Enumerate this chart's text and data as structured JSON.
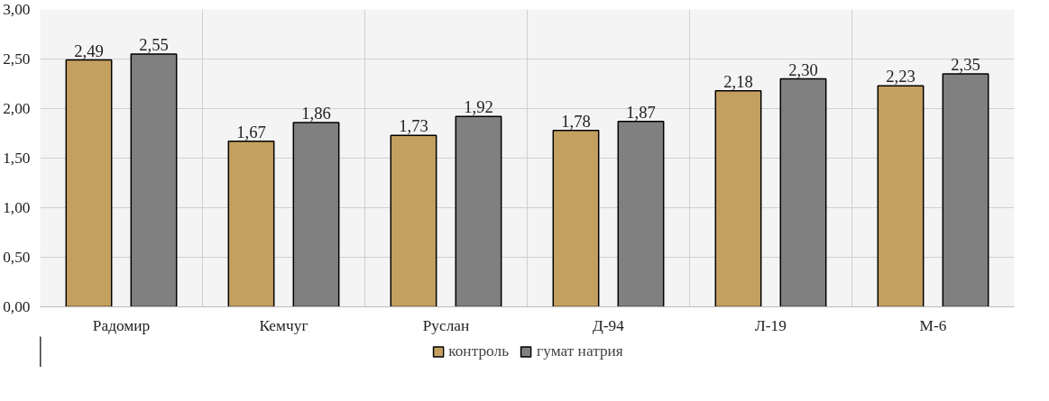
{
  "chart_data": {
    "type": "bar",
    "categories": [
      "Радомир",
      "Кемчуг",
      "Руслан",
      "Д-94",
      "Л-19",
      "М-6"
    ],
    "series": [
      {
        "name": "контроль",
        "color": "#c4a060",
        "values": [
          2.49,
          1.67,
          1.73,
          1.78,
          2.18,
          2.23
        ],
        "value_labels": [
          "2,49",
          "1,67",
          "1,73",
          "1,78",
          "2,18",
          "2,23"
        ]
      },
      {
        "name": "гумат натрия",
        "color": "#808080",
        "values": [
          2.55,
          1.86,
          1.92,
          1.87,
          2.3,
          2.35
        ],
        "value_labels": [
          "2,55",
          "1,86",
          "1,92",
          "1,87",
          "2,30",
          "2,35"
        ]
      }
    ],
    "ylim": [
      0,
      3
    ],
    "yticks": [
      {
        "value": 0,
        "label": "0,00"
      },
      {
        "value": 0.5,
        "label": "0,50"
      },
      {
        "value": 1,
        "label": "1,00"
      },
      {
        "value": 1.5,
        "label": "1,50"
      },
      {
        "value": 2,
        "label": "2,00"
      },
      {
        "value": 2.5,
        "label": "2,50"
      },
      {
        "value": 3,
        "label": "3,00"
      }
    ],
    "grid": true,
    "legend": "bottom"
  }
}
